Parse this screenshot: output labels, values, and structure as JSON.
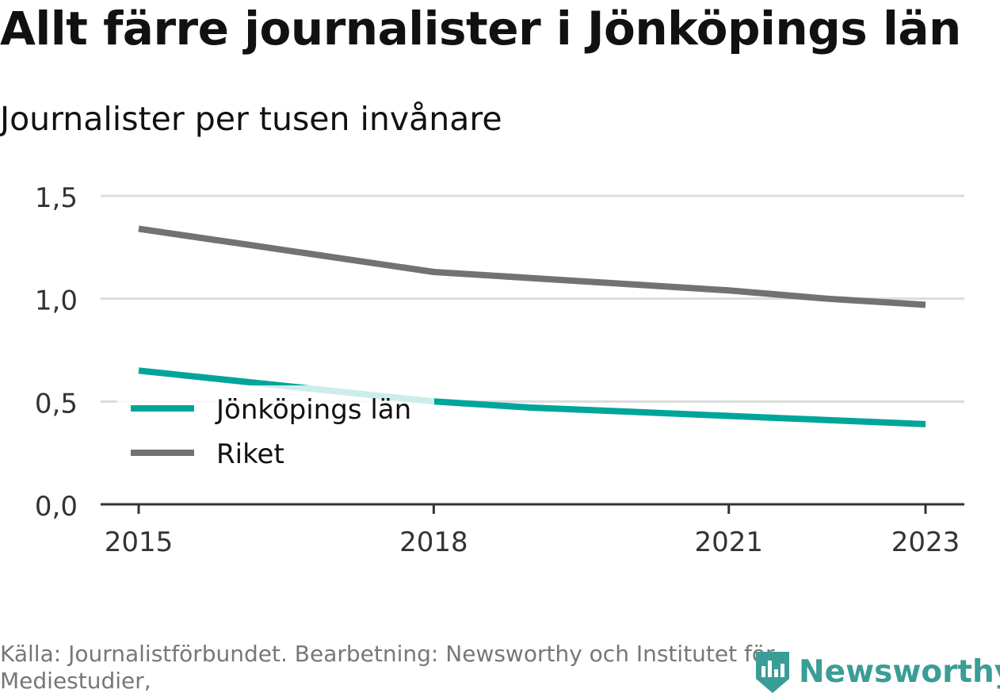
{
  "title": "Allt färre journalister i Jönköpings län",
  "subtitle": "Journalister per tusen invånare",
  "source": "Källa: Journalistförbundet. Bearbetning: Newsworthy och Institutet för Mediestudier,",
  "logo": {
    "text": "Newsworthy",
    "icon": "newsworthy-bar-chart-icon",
    "color": "#3a9d96"
  },
  "chart_data": {
    "type": "line",
    "x": [
      2015,
      2016,
      2017,
      2018,
      2019,
      2020,
      2021,
      2022,
      2023
    ],
    "xticks": [
      2015,
      2018,
      2021,
      2023
    ],
    "xtick_labels": [
      "2015",
      "2018",
      "2021",
      "2023"
    ],
    "ylim": [
      0,
      1.5
    ],
    "yticks": [
      0,
      0.5,
      1.0,
      1.5
    ],
    "ytick_labels": [
      "0,0",
      "0,5",
      "1,0",
      "1,5"
    ],
    "grid": true,
    "legend_position": "lower-left",
    "series": [
      {
        "name": "Jönköpings län",
        "color": "#00a59a",
        "values": [
          0.65,
          0.6,
          0.55,
          0.5,
          0.47,
          0.45,
          0.43,
          0.41,
          0.39
        ]
      },
      {
        "name": "Riket",
        "color": "#727175",
        "values": [
          1.34,
          1.27,
          1.2,
          1.13,
          1.1,
          1.07,
          1.04,
          1.0,
          0.97
        ]
      }
    ]
  }
}
